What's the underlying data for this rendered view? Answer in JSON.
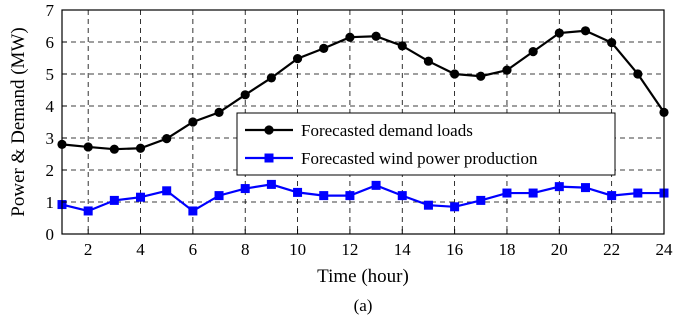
{
  "chart_data": {
    "type": "line",
    "x": [
      1,
      2,
      3,
      4,
      5,
      6,
      7,
      8,
      9,
      10,
      11,
      12,
      13,
      14,
      15,
      16,
      17,
      18,
      19,
      20,
      21,
      22,
      23,
      24
    ],
    "series": [
      {
        "name": "Forecasted demand loads",
        "color": "#000000",
        "marker": "circle",
        "values": [
          2.8,
          2.72,
          2.65,
          2.68,
          2.98,
          3.5,
          3.8,
          4.35,
          4.88,
          5.48,
          5.8,
          6.15,
          6.18,
          5.88,
          5.4,
          5.0,
          4.93,
          5.12,
          5.7,
          6.28,
          6.35,
          5.98,
          5.0,
          3.8
        ]
      },
      {
        "name": "Forecasted wind power production",
        "color": "#0000ff",
        "marker": "square",
        "values": [
          0.92,
          0.72,
          1.05,
          1.15,
          1.35,
          0.72,
          1.2,
          1.42,
          1.55,
          1.3,
          1.2,
          1.2,
          1.52,
          1.2,
          0.9,
          0.85,
          1.05,
          1.28,
          1.28,
          1.48,
          1.45,
          1.2,
          1.28,
          1.28
        ]
      }
    ],
    "xlabel": "Time (hour)",
    "ylabel": "Power & Demand (MW)",
    "xlim": [
      1,
      24
    ],
    "ylim": [
      0,
      7
    ],
    "xticks": [
      2,
      4,
      6,
      8,
      10,
      12,
      14,
      16,
      18,
      20,
      22,
      24
    ],
    "yticks": [
      0,
      1,
      2,
      3,
      4,
      5,
      6,
      7
    ],
    "grid": true,
    "grid_style": "dashed",
    "legend_position": "center-right",
    "caption": "(a)"
  }
}
